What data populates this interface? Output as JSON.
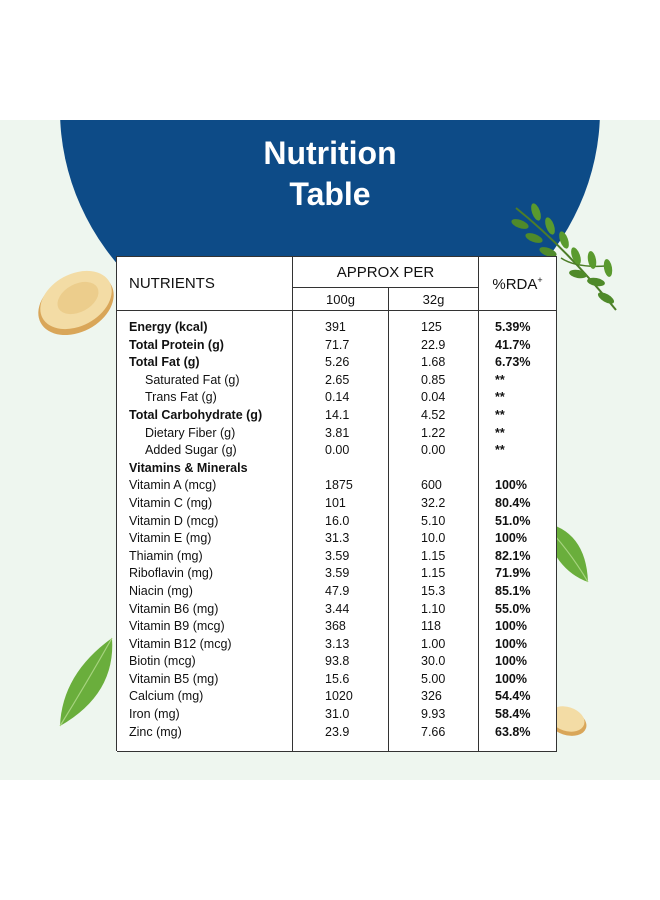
{
  "heading": {
    "line1": "Nutrition",
    "line2": "Table"
  },
  "table": {
    "headers": {
      "nutrients": "NUTRIENTS",
      "approx_per": "APPROX PER",
      "rda": "%RDA",
      "rda_mark": "+",
      "col_100g": "100g",
      "col_32g": "32g"
    },
    "rows": [
      {
        "name": "Energy (kcal)",
        "v100": "391",
        "v32": "125",
        "rda": "5.39%",
        "bold": true,
        "indent": false
      },
      {
        "name": "Total Protein (g)",
        "v100": "71.7",
        "v32": "22.9",
        "rda": "41.7%",
        "bold": true,
        "indent": false
      },
      {
        "name": "Total Fat (g)",
        "v100": "5.26",
        "v32": "1.68",
        "rda": "6.73%",
        "bold": true,
        "indent": false
      },
      {
        "name": "Saturated Fat (g)",
        "v100": "2.65",
        "v32": "0.85",
        "rda": "**",
        "bold": false,
        "indent": true
      },
      {
        "name": "Trans Fat (g)",
        "v100": "0.14",
        "v32": "0.04",
        "rda": "**",
        "bold": false,
        "indent": true
      },
      {
        "name": "Total Carbohydrate (g)",
        "v100": "14.1",
        "v32": "4.52",
        "rda": "**",
        "bold": true,
        "indent": false
      },
      {
        "name": "Dietary Fiber (g)",
        "v100": "3.81",
        "v32": "1.22",
        "rda": "**",
        "bold": false,
        "indent": true
      },
      {
        "name": "Added Sugar (g)",
        "v100": "0.00",
        "v32": "0.00",
        "rda": "**",
        "bold": false,
        "indent": true
      },
      {
        "name": "Vitamins & Minerals",
        "v100": "",
        "v32": "",
        "rda": "",
        "bold": true,
        "indent": false
      },
      {
        "name": "Vitamin A (mcg)",
        "v100": "1875",
        "v32": "600",
        "rda": "100%",
        "bold": false,
        "indent": false
      },
      {
        "name": "Vitamin C (mg)",
        "v100": "101",
        "v32": "32.2",
        "rda": "80.4%",
        "bold": false,
        "indent": false
      },
      {
        "name": "Vitamin D (mcg)",
        "v100": "16.0",
        "v32": "5.10",
        "rda": "51.0%",
        "bold": false,
        "indent": false
      },
      {
        "name": "Vitamin E (mg)",
        "v100": "31.3",
        "v32": "10.0",
        "rda": "100%",
        "bold": false,
        "indent": false
      },
      {
        "name": "Thiamin (mg)",
        "v100": "3.59",
        "v32": "1.15",
        "rda": "82.1%",
        "bold": false,
        "indent": false
      },
      {
        "name": "Riboflavin (mg)",
        "v100": "3.59",
        "v32": "1.15",
        "rda": "71.9%",
        "bold": false,
        "indent": false
      },
      {
        "name": "Niacin (mg)",
        "v100": "47.9",
        "v32": "15.3",
        "rda": "85.1%",
        "bold": false,
        "indent": false
      },
      {
        "name": "Vitamin B6 (mg)",
        "v100": "3.44",
        "v32": "1.10",
        "rda": "55.0%",
        "bold": false,
        "indent": false
      },
      {
        "name": "Vitamin B9 (mcg)",
        "v100": "368",
        "v32": "118",
        "rda": "100%",
        "bold": false,
        "indent": false
      },
      {
        "name": "Vitamin B12 (mcg)",
        "v100": "3.13",
        "v32": "1.00",
        "rda": "100%",
        "bold": false,
        "indent": false
      },
      {
        "name": "Biotin (mcg)",
        "v100": "93.8",
        "v32": "30.0",
        "rda": "100%",
        "bold": false,
        "indent": false
      },
      {
        "name": "Vitamin B5 (mg)",
        "v100": "15.6",
        "v32": "5.00",
        "rda": "100%",
        "bold": false,
        "indent": false
      },
      {
        "name": "Calcium (mg)",
        "v100": "1020",
        "v32": "326",
        "rda": "54.4%",
        "bold": false,
        "indent": false
      },
      {
        "name": "Iron (mg)",
        "v100": "31.0",
        "v32": "9.93",
        "rda": "58.4%",
        "bold": false,
        "indent": false
      },
      {
        "name": "Zinc (mg)",
        "v100": "23.9",
        "v32": "7.66",
        "rda": "63.8%",
        "bold": false,
        "indent": false
      }
    ]
  },
  "decor": {
    "icons": [
      "ginger-slice-icon",
      "moringa-leaves-icon",
      "leaf-icon"
    ],
    "colors": {
      "brand_blue": "#0d4b87",
      "panel_bg": "#eef6ef",
      "leaf_green": "#5a9a2e",
      "ginger": "#e9c98a"
    }
  }
}
